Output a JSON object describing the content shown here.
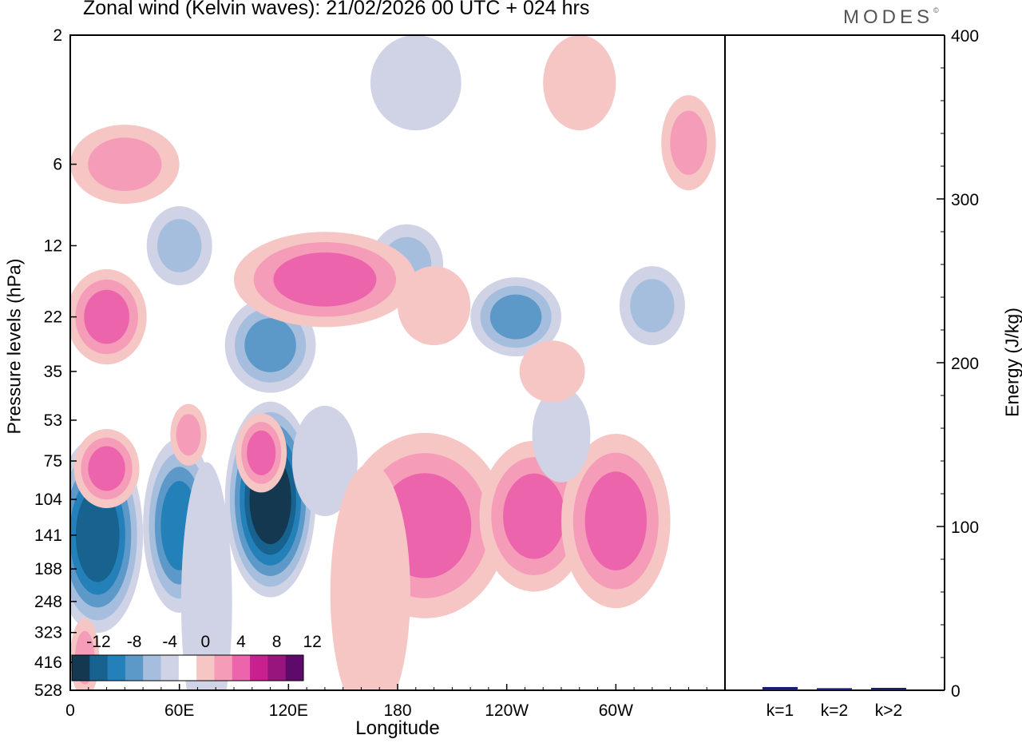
{
  "chart_data": {
    "type": "heatmap",
    "title": "Zonal wind (Kelvin waves):  21/02/2026  00 UTC  + 024 hrs",
    "brand": "MODES",
    "brand_mark": "©",
    "xlabel": "Longitude",
    "ylabel": "Pressure levels (hPa)",
    "x_ticks": [
      "0",
      "60E",
      "120E",
      "180",
      "120W",
      "60W"
    ],
    "y_ticks": [
      "2",
      "6",
      "12",
      "22",
      "35",
      "53",
      "75",
      "104",
      "141",
      "188",
      "248",
      "323",
      "416",
      "528"
    ],
    "colorbar": {
      "labels": [
        "-12",
        "-8",
        "-4",
        "0",
        "4",
        "8",
        "12"
      ],
      "colors": [
        "#14384f",
        "#17628f",
        "#2380b9",
        "#5c98c8",
        "#a6bedd",
        "#d0d3e6",
        "#ffffff",
        "#f6c6c5",
        "#f59cb8",
        "#ec64ac",
        "#c8208f",
        "#99157e",
        "#5e0a6b"
      ]
    },
    "blobs": [
      {
        "lon": 15,
        "lev": 141,
        "dlon": 25,
        "dlev": 2.3,
        "val": -11
      },
      {
        "lon": 60,
        "lev": 130,
        "dlon": 20,
        "dlev": 2.1,
        "val": -8
      },
      {
        "lon": 110,
        "lev": 104,
        "dlon": 25,
        "dlev": 2.3,
        "val": -13
      },
      {
        "lon": 75,
        "lev": 250,
        "dlon": 14,
        "dlev": 3.3,
        "val": -3
      },
      {
        "lon": 140,
        "lev": 75,
        "dlon": 18,
        "dlev": 1.6,
        "val": -3
      },
      {
        "lon": 195,
        "lev": 130,
        "dlon": 45,
        "dlev": 2.2,
        "val": 7
      },
      {
        "lon": 255,
        "lev": 120,
        "dlon": 30,
        "dlev": 1.9,
        "val": 6
      },
      {
        "lon": 300,
        "lev": 125,
        "dlon": 30,
        "dlev": 2.1,
        "val": 6
      },
      {
        "lon": 165,
        "lev": 230,
        "dlon": 22,
        "dlev": 3.0,
        "val": 3
      },
      {
        "lon": 20,
        "lev": 80,
        "dlon": 18,
        "dlev": 1.4,
        "val": 6
      },
      {
        "lon": 105,
        "lev": 70,
        "dlon": 14,
        "dlev": 1.4,
        "val": 7
      },
      {
        "lon": 65,
        "lev": 60,
        "dlon": 10,
        "dlev": 1.3,
        "val": 5
      },
      {
        "lon": 270,
        "lev": 60,
        "dlon": 16,
        "dlev": 1.5,
        "val": -3
      },
      {
        "lon": 110,
        "lev": 28,
        "dlon": 25,
        "dlev": 1.5,
        "val": -6
      },
      {
        "lon": 60,
        "lev": 12,
        "dlon": 18,
        "dlev": 1.4,
        "val": -5
      },
      {
        "lon": 185,
        "lev": 14,
        "dlon": 20,
        "dlev": 1.4,
        "val": -5
      },
      {
        "lon": 245,
        "lev": 22,
        "dlon": 25,
        "dlev": 1.4,
        "val": -6
      },
      {
        "lon": 320,
        "lev": 20,
        "dlon": 18,
        "dlev": 1.4,
        "val": -5
      },
      {
        "lon": 140,
        "lev": 16,
        "dlon": 50,
        "dlev": 1.5,
        "val": 7
      },
      {
        "lon": 20,
        "lev": 22,
        "dlon": 22,
        "dlev": 1.5,
        "val": 6
      },
      {
        "lon": 30,
        "lev": 6,
        "dlon": 30,
        "dlev": 1.4,
        "val": 4
      },
      {
        "lon": 200,
        "lev": 20,
        "dlon": 20,
        "dlev": 1.4,
        "val": 3
      },
      {
        "lon": 265,
        "lev": 35,
        "dlon": 18,
        "dlev": 1.3,
        "val": 3
      },
      {
        "lon": 340,
        "lev": 5,
        "dlon": 15,
        "dlev": 1.5,
        "val": 5
      },
      {
        "lon": 280,
        "lev": 3,
        "dlon": 20,
        "dlev": 1.5,
        "val": 3
      },
      {
        "lon": 190,
        "lev": 3,
        "dlon": 25,
        "dlev": 1.5,
        "val": -3
      },
      {
        "lon": 8,
        "lev": 400,
        "dlon": 8,
        "dlev": 1.4,
        "val": 4
      }
    ],
    "energy_panel": {
      "ylabel": "Energy (J/kg)",
      "y_ticks": [
        "0",
        "100",
        "200",
        "300",
        "400"
      ],
      "ylim": [
        0,
        400
      ],
      "categories": [
        "k=1",
        "k=2",
        "k>2"
      ],
      "values": [
        1,
        0.3,
        0.5
      ],
      "bar_color": "#1a1a6e"
    }
  }
}
